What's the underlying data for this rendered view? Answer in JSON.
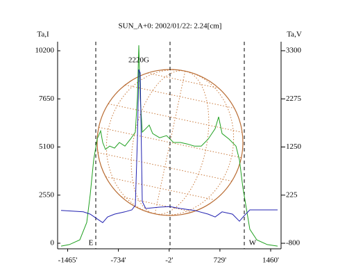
{
  "chart_data": {
    "type": "line",
    "title": "SUN_A+0: 2002/01/22: 2.24[cm]",
    "y_label": "Ta,I",
    "y2_label": "Ta,V",
    "xlim": [
      -1610,
      1610
    ],
    "xticks": [
      {
        "value": -1465,
        "label": "-1465'"
      },
      {
        "value": -734,
        "label": "-734'"
      },
      {
        "value": -2,
        "label": "-2'"
      },
      {
        "value": 729,
        "label": "729'"
      },
      {
        "value": 1460,
        "label": "1460'"
      }
    ],
    "ylim": [
      -295,
      10680
    ],
    "yticks": [
      0,
      2550,
      5100,
      7650,
      10200
    ],
    "y2lim": [
      -918,
      3492
    ],
    "y2ticks": [
      -800,
      225,
      1250,
      2275,
      3300
    ],
    "annotations": [
      "2220G",
      "E",
      "W"
    ],
    "series": [
      {
        "color": "#20a020",
        "x": [
          -1560,
          -1440,
          -1290,
          -1190,
          -1140,
          -1090,
          -1040,
          -990,
          -960,
          -920,
          -860,
          -790,
          -720,
          -640,
          -560,
          -490,
          -460,
          -440,
          -420,
          -390,
          -340,
          -290,
          -240,
          -140,
          -40,
          60,
          160,
          260,
          360,
          460,
          560,
          660,
          710,
          760,
          860,
          960,
          1010,
          1060,
          1110,
          1160,
          1260,
          1410,
          1560
        ],
        "values": [
          -150,
          -70,
          180,
          1100,
          2580,
          4420,
          5520,
          5960,
          5340,
          4970,
          5150,
          5040,
          5340,
          5150,
          5520,
          5890,
          7730,
          10490,
          7730,
          5890,
          6070,
          6260,
          5810,
          5590,
          5700,
          5340,
          5340,
          5260,
          5150,
          5150,
          5520,
          6070,
          6700,
          5810,
          5520,
          5150,
          4420,
          2940,
          1840,
          740,
          180,
          -70,
          -150
        ]
      },
      {
        "color": "#2020b0",
        "axis": "y2",
        "x": [
          -1560,
          -1240,
          -1140,
          -1040,
          -960,
          -890,
          -790,
          -640,
          -540,
          -490,
          -460,
          -440,
          -420,
          -390,
          -340,
          -140,
          10,
          160,
          360,
          560,
          660,
          760,
          910,
          1010,
          1080,
          1160,
          1360,
          1560
        ],
        "values": [
          -100,
          -130,
          -180,
          -280,
          -360,
          -240,
          -180,
          -130,
          -90,
          10,
          1420,
          2900,
          2830,
          90,
          -60,
          -30,
          -20,
          -60,
          -100,
          -180,
          -240,
          -130,
          -180,
          -330,
          -210,
          -90,
          -90,
          -90
        ]
      }
    ]
  }
}
